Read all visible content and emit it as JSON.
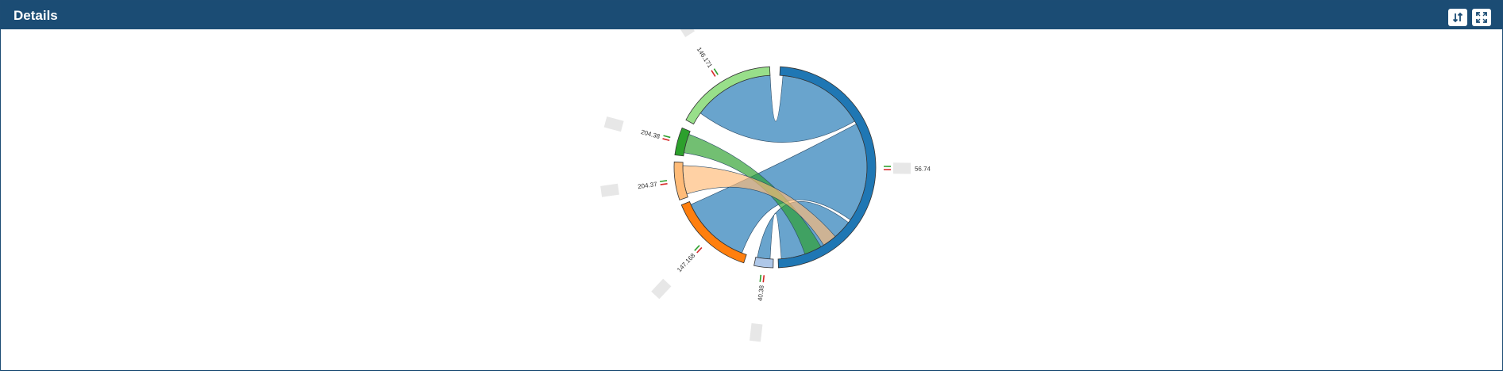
{
  "header": {
    "title": "Details",
    "sort_icon": "sort-arrows-icon",
    "fullscreen_icon": "expand-icon"
  },
  "colors": {
    "header_bg": "#1b4c74",
    "flag_green": "#2ca02c",
    "flag_red": "#d62728"
  },
  "chart_data": {
    "type": "chord",
    "title": "",
    "groups": [
      {
        "id": "g0",
        "value_label": "56.74",
        "color": "#1f77b4"
      },
      {
        "id": "g1",
        "value_label": "40.38",
        "color": "#aec7e8"
      },
      {
        "id": "g2",
        "value_label": "147.168",
        "color": "#ff7f0e"
      },
      {
        "id": "g3",
        "value_label": "204.37",
        "color": "#ffbb78"
      },
      {
        "id": "g4",
        "value_label": "204.38",
        "color": "#2ca02c"
      },
      {
        "id": "g5",
        "value_label": "146.171",
        "color": "#98df8a"
      }
    ],
    "group_angles_deg": [
      {
        "start": 3,
        "end": 178
      },
      {
        "start": 181,
        "end": 192
      },
      {
        "start": 198,
        "end": 248
      },
      {
        "start": 251,
        "end": 273
      },
      {
        "start": 277,
        "end": 293
      },
      {
        "start": 298,
        "end": 357
      }
    ],
    "chords": [
      {
        "source": 0,
        "source_deg": [
          5,
          60
        ],
        "target": 5,
        "target_deg": [
          306,
          357
        ],
        "color": "#1f77b4"
      },
      {
        "source": 0,
        "source_deg": [
          62,
          125
        ],
        "target": 2,
        "target_deg": [
          201,
          246
        ],
        "color": "#1f77b4"
      },
      {
        "source": 0,
        "source_deg": [
          127,
          176
        ],
        "target": 1,
        "target_deg": [
          183,
          191
        ],
        "color": "#1f77b4"
      },
      {
        "source": 0,
        "source_deg": [
          150,
          161
        ],
        "target": 4,
        "target_deg": [
          279,
          291
        ],
        "color": "#2ca02c"
      },
      {
        "source": 0,
        "source_deg": [
          139,
          148
        ],
        "target": 3,
        "target_deg": [
          253,
          271
        ],
        "color": "#ffbb78"
      }
    ]
  }
}
